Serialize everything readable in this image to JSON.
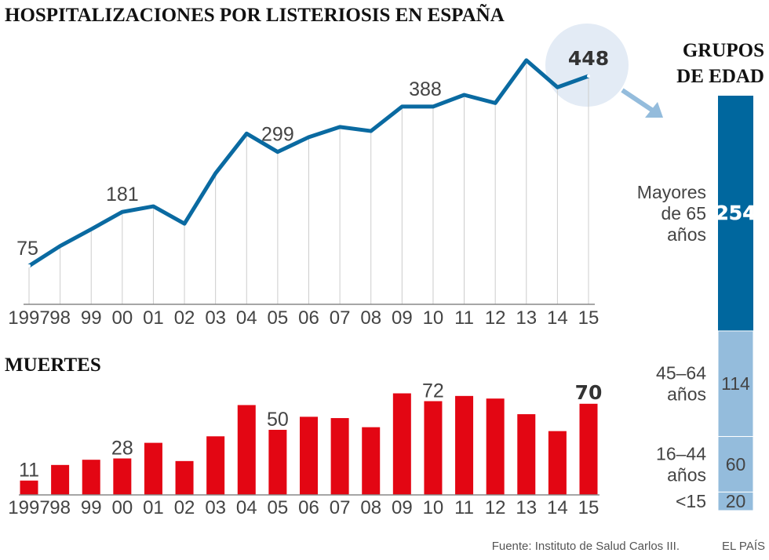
{
  "chart_data": [
    {
      "type": "line",
      "title": "HOSPITALIZACIONES POR LISTERIOSIS EN ESPAÑA",
      "categories": [
        "1997",
        "98",
        "99",
        "00",
        "01",
        "02",
        "03",
        "04",
        "05",
        "06",
        "07",
        "08",
        "09",
        "10",
        "11",
        "12",
        "13",
        "14",
        "15"
      ],
      "values": [
        75,
        114,
        147,
        181,
        192,
        158,
        257,
        335,
        299,
        328,
        348,
        340,
        388,
        388,
        411,
        395,
        479,
        426,
        448
      ],
      "labels": [
        {
          "index": 0,
          "text": "75"
        },
        {
          "index": 3,
          "text": "181"
        },
        {
          "index": 8,
          "text": "299"
        },
        {
          "index": 13,
          "text": "388"
        },
        {
          "index": 18,
          "text": "448"
        }
      ],
      "color": "#0a6aa1",
      "highlight_color": "#e3ebf5",
      "grid": "vertical"
    },
    {
      "type": "bar",
      "title": "MUERTES",
      "categories": [
        "1997",
        "98",
        "99",
        "00",
        "01",
        "02",
        "03",
        "04",
        "05",
        "06",
        "07",
        "08",
        "09",
        "10",
        "11",
        "12",
        "13",
        "14",
        "15"
      ],
      "values": [
        11,
        23,
        27,
        28,
        40,
        26,
        45,
        69,
        50,
        60,
        59,
        52,
        78,
        72,
        76,
        74,
        62,
        49,
        70
      ],
      "labels": [
        {
          "index": 0,
          "text": "11"
        },
        {
          "index": 3,
          "text": "28"
        },
        {
          "index": 8,
          "text": "50"
        },
        {
          "index": 13,
          "text": "72"
        },
        {
          "index": 18,
          "text": "70"
        }
      ],
      "color": "#e30613"
    },
    {
      "type": "bar",
      "title": "GRUPOS DE EDAD",
      "title_lines": [
        "GRUPOS",
        "DE EDAD"
      ],
      "stacked": true,
      "segments": [
        {
          "label_lines": [
            "Mayores",
            "de 65",
            "años"
          ],
          "value": 254,
          "color": "#00679e"
        },
        {
          "label_lines": [
            "45–64",
            "años"
          ],
          "value": 114,
          "color": "#94bcdc"
        },
        {
          "label_lines": [
            "16–44",
            "años"
          ],
          "value": 60,
          "color": "#94bcdc"
        },
        {
          "label_lines": [
            "<15"
          ],
          "value": 20,
          "color": "#94bcdc"
        }
      ]
    }
  ],
  "footer": {
    "source": "Fuente: Instituto de Salud Carlos III.",
    "brand": "EL PAÍS"
  }
}
